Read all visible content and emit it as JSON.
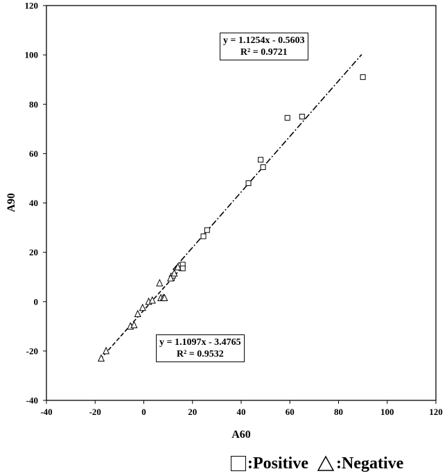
{
  "chart_data": {
    "type": "scatter",
    "title": "",
    "xlabel": "A60",
    "ylabel": "A90",
    "xlim": [
      -40,
      120
    ],
    "ylim": [
      -40,
      120
    ],
    "x_ticks": [
      "-40",
      "-20",
      "0",
      "20",
      "40",
      "60",
      "80",
      "100",
      "120"
    ],
    "y_ticks": [
      "-40",
      "-20",
      "0",
      "20",
      "40",
      "60",
      "80",
      "100",
      "120"
    ],
    "grid": false,
    "series": [
      {
        "name": "Positive",
        "marker": "square",
        "points": [
          [
            90,
            91
          ],
          [
            65,
            75
          ],
          [
            59,
            74.5
          ],
          [
            48,
            57.5
          ],
          [
            49,
            54.5
          ],
          [
            43,
            48
          ],
          [
            26,
            29
          ],
          [
            24.5,
            26.5
          ],
          [
            16,
            15
          ],
          [
            16,
            13.5
          ],
          [
            11.5,
            9.5
          ],
          [
            12,
            10.5
          ]
        ]
      },
      {
        "name": "Negative",
        "marker": "triangle",
        "points": [
          [
            -17.5,
            -23
          ],
          [
            -15.5,
            -20
          ],
          [
            -5.5,
            -10
          ],
          [
            -4,
            -9.5
          ],
          [
            -2.5,
            -5
          ],
          [
            -0.5,
            -2.5
          ],
          [
            2,
            0
          ],
          [
            3.5,
            0.5
          ],
          [
            6.5,
            7.5
          ],
          [
            7,
            1.5
          ],
          [
            8,
            1.5
          ],
          [
            8.5,
            1.5
          ],
          [
            11,
            9.5
          ],
          [
            12.5,
            11.5
          ],
          [
            14,
            14
          ]
        ]
      }
    ],
    "trendlines": [
      {
        "series": "Positive",
        "style": "dash-dot",
        "slope": 1.1254,
        "intercept": -0.5603,
        "x_range": [
          12,
          89.5
        ],
        "equation": "y = 1.1254x - 0.5603",
        "r2": "R² = 0.9721"
      },
      {
        "series": "Negative",
        "style": "dashed",
        "slope": 1.1097,
        "intercept": -3.4765,
        "x_range": [
          -18,
          15
        ],
        "equation": "y = 1.1097x - 3.4765",
        "r2": "R² = 0.9532"
      }
    ],
    "legend": {
      "position": "bottom-right",
      "positive": ":Positive",
      "negative": ":Negative"
    }
  }
}
